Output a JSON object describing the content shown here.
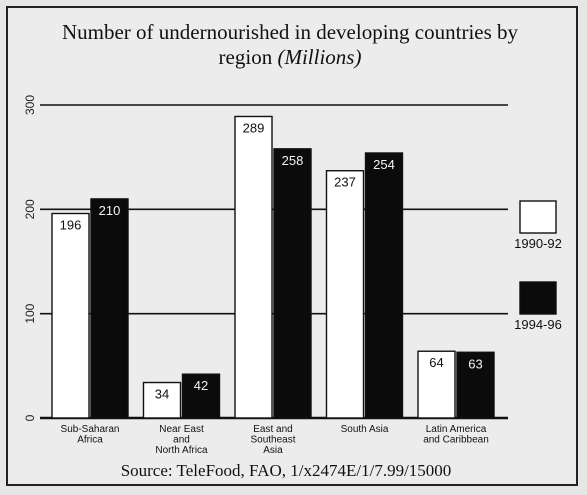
{
  "chart_data": {
    "type": "bar",
    "title_line1": "Number of undernourished in developing countries by",
    "title_line2_prefix": "region ",
    "title_line2_italic": "(Millions)",
    "categories": [
      [
        "Sub-Saharan",
        "Africa"
      ],
      [
        "Near East",
        "and",
        "North Africa"
      ],
      [
        "East and",
        "Southeast",
        "Asia"
      ],
      [
        "South Asia"
      ],
      [
        "Latin America",
        "and Caribbean"
      ]
    ],
    "series": [
      {
        "name": "1990-92",
        "values": [
          196,
          34,
          289,
          237,
          64
        ],
        "color": "#ffffff"
      },
      {
        "name": "1994-96",
        "values": [
          210,
          42,
          258,
          254,
          63
        ],
        "color": "#0b0b0b"
      }
    ],
    "value_labels": [
      [
        "196",
        "34",
        "289",
        "237",
        "64"
      ],
      [
        "210",
        "42",
        "258",
        "254",
        "63"
      ]
    ],
    "yticks": [
      0,
      100,
      200,
      300
    ],
    "ytick_labels": [
      "0",
      "100",
      "200",
      "300"
    ],
    "ylim": [
      0,
      300
    ],
    "grid": true,
    "legend_position": "right",
    "source": "Source: TeleFood, FAO, 1/x2474E/1/7.99/15000"
  }
}
